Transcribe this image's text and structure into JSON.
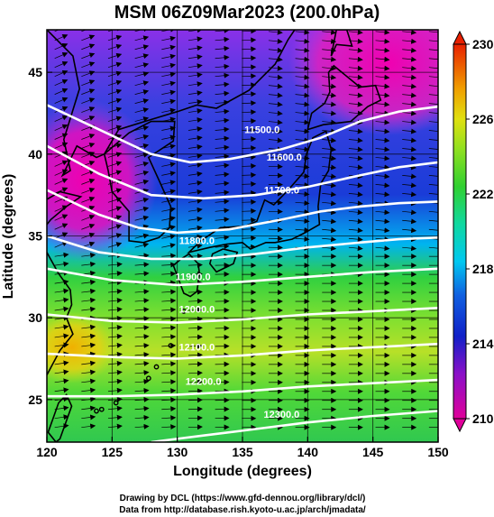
{
  "title": "MSM 06Z09Mar2023 (200.0hPa)",
  "x_axis": {
    "label": "Longitude (degrees)",
    "ticks": [
      "120",
      "125",
      "130",
      "135",
      "140",
      "145",
      "150"
    ]
  },
  "y_axis": {
    "label": "Latitude  (degrees)",
    "ticks": [
      "25",
      "30",
      "35",
      "40",
      "45"
    ]
  },
  "colorbar": {
    "ticks": [
      "210",
      "214",
      "218",
      "222",
      "226",
      "230"
    ]
  },
  "contours": [
    {
      "label": "11500.0"
    },
    {
      "label": "11600.0"
    },
    {
      "label": "11700.0"
    },
    {
      "label": "11800.0"
    },
    {
      "label": "11900.0"
    },
    {
      "label": "12000.0"
    },
    {
      "label": "12100.0"
    },
    {
      "label": "12200.0"
    },
    {
      "label": "12300.0"
    }
  ],
  "footer": {
    "line1": "Drawing by DCL (https://www.gfd-dennou.org/library/dcl/)",
    "line2": "Data from http://database.rish.kyoto-u.ac.jp/arch/jmadata/"
  },
  "chart_data": {
    "type": "heatmap",
    "title": "MSM 06Z09Mar2023 (200.0hPa)",
    "xlabel": "Longitude (degrees)",
    "ylabel": "Latitude  (degrees)",
    "xlim": [
      120,
      150
    ],
    "ylim": [
      22.4,
      47.6
    ],
    "color_range": [
      210,
      230
    ],
    "colors": [
      "#e0009a",
      "#1020c8",
      "#00c8f0",
      "#30d030",
      "#c8e820",
      "#f0a000",
      "#e82000"
    ],
    "contour_levels": [
      11500,
      11600,
      11700,
      11800,
      11900,
      12000,
      12100,
      12200,
      12300
    ]
  }
}
